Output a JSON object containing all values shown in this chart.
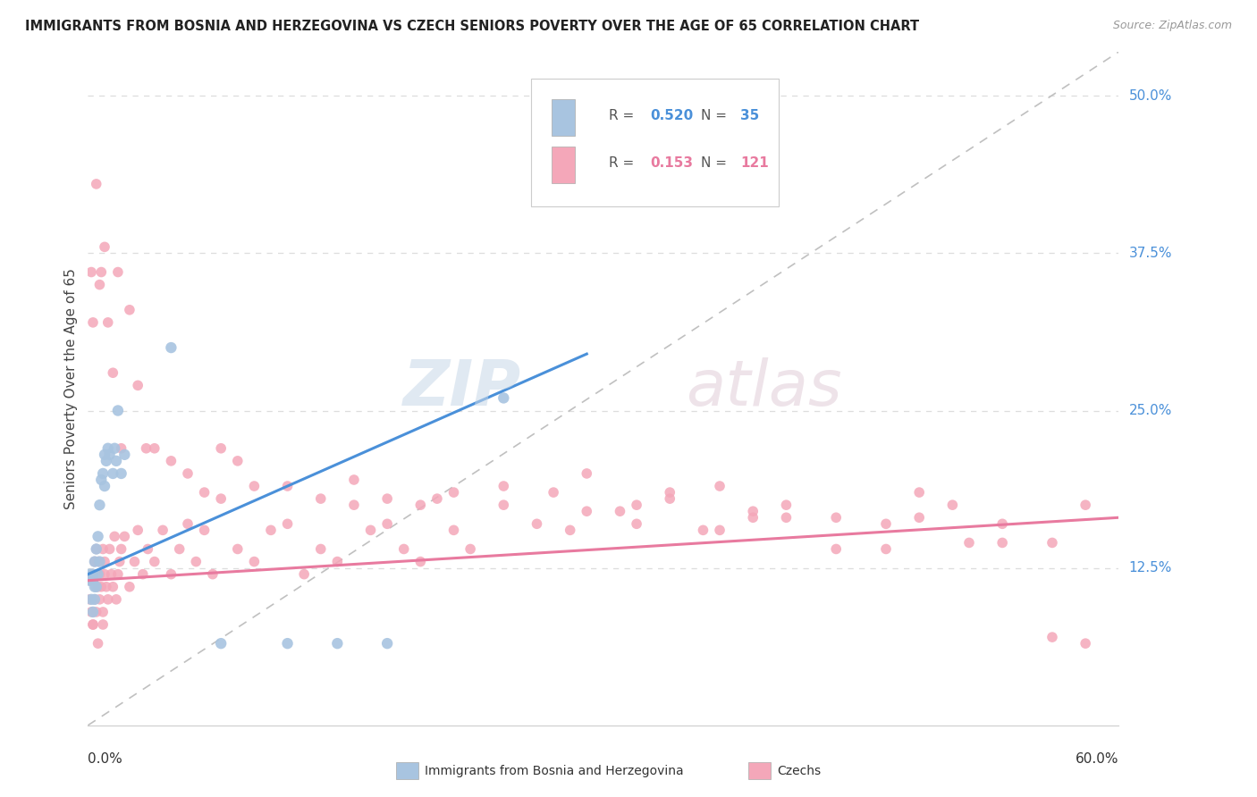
{
  "title": "IMMIGRANTS FROM BOSNIA AND HERZEGOVINA VS CZECH SENIORS POVERTY OVER THE AGE OF 65 CORRELATION CHART",
  "source": "Source: ZipAtlas.com",
  "ylabel": "Seniors Poverty Over the Age of 65",
  "color_bosnia": "#a8c4e0",
  "color_czechs": "#f4a7b9",
  "line_color_bosnia": "#4a90d9",
  "line_color_czechs": "#e87a9f",
  "dashed_line_color": "#c0c0c0",
  "grid_color": "#dddddd",
  "xlim": [
    0.0,
    0.62
  ],
  "ylim": [
    0.0,
    0.535
  ],
  "ytick_values": [
    0.125,
    0.25,
    0.375,
    0.5
  ],
  "ytick_labels": [
    "12.5%",
    "25.0%",
    "37.5%",
    "50.0%"
  ],
  "bosnia_x": [
    0.001,
    0.001,
    0.002,
    0.002,
    0.003,
    0.003,
    0.003,
    0.004,
    0.004,
    0.004,
    0.005,
    0.005,
    0.006,
    0.006,
    0.007,
    0.007,
    0.008,
    0.009,
    0.01,
    0.01,
    0.011,
    0.012,
    0.013,
    0.015,
    0.016,
    0.017,
    0.018,
    0.02,
    0.022,
    0.05,
    0.08,
    0.12,
    0.15,
    0.18,
    0.25
  ],
  "bosnia_y": [
    0.115,
    0.12,
    0.115,
    0.1,
    0.09,
    0.12,
    0.115,
    0.1,
    0.11,
    0.13,
    0.11,
    0.14,
    0.12,
    0.15,
    0.13,
    0.175,
    0.195,
    0.2,
    0.19,
    0.215,
    0.21,
    0.22,
    0.215,
    0.2,
    0.22,
    0.21,
    0.25,
    0.2,
    0.215,
    0.3,
    0.065,
    0.065,
    0.065,
    0.065,
    0.26
  ],
  "czechs_x": [
    0.001,
    0.001,
    0.002,
    0.002,
    0.003,
    0.003,
    0.004,
    0.004,
    0.005,
    0.005,
    0.006,
    0.006,
    0.007,
    0.007,
    0.008,
    0.009,
    0.009,
    0.01,
    0.01,
    0.011,
    0.012,
    0.013,
    0.014,
    0.015,
    0.016,
    0.017,
    0.018,
    0.019,
    0.02,
    0.022,
    0.025,
    0.028,
    0.03,
    0.033,
    0.036,
    0.04,
    0.045,
    0.05,
    0.055,
    0.06,
    0.065,
    0.07,
    0.075,
    0.08,
    0.09,
    0.1,
    0.11,
    0.12,
    0.13,
    0.14,
    0.15,
    0.16,
    0.17,
    0.18,
    0.19,
    0.2,
    0.21,
    0.22,
    0.23,
    0.25,
    0.27,
    0.29,
    0.3,
    0.32,
    0.33,
    0.35,
    0.37,
    0.38,
    0.4,
    0.42,
    0.45,
    0.48,
    0.5,
    0.52,
    0.55,
    0.58,
    0.6,
    0.002,
    0.003,
    0.005,
    0.007,
    0.008,
    0.01,
    0.012,
    0.015,
    0.018,
    0.02,
    0.025,
    0.03,
    0.035,
    0.04,
    0.05,
    0.06,
    0.07,
    0.08,
    0.09,
    0.1,
    0.12,
    0.14,
    0.16,
    0.18,
    0.2,
    0.22,
    0.25,
    0.28,
    0.3,
    0.33,
    0.35,
    0.38,
    0.4,
    0.42,
    0.45,
    0.48,
    0.5,
    0.53,
    0.55,
    0.58,
    0.6,
    0.003,
    0.006,
    0.009
  ],
  "czechs_y": [
    0.1,
    0.115,
    0.09,
    0.115,
    0.08,
    0.12,
    0.1,
    0.13,
    0.09,
    0.14,
    0.11,
    0.13,
    0.1,
    0.12,
    0.11,
    0.09,
    0.14,
    0.12,
    0.13,
    0.11,
    0.1,
    0.14,
    0.12,
    0.11,
    0.15,
    0.1,
    0.12,
    0.13,
    0.14,
    0.15,
    0.11,
    0.13,
    0.155,
    0.12,
    0.14,
    0.13,
    0.155,
    0.12,
    0.14,
    0.16,
    0.13,
    0.155,
    0.12,
    0.18,
    0.14,
    0.13,
    0.155,
    0.16,
    0.12,
    0.14,
    0.13,
    0.175,
    0.155,
    0.16,
    0.14,
    0.13,
    0.18,
    0.155,
    0.14,
    0.19,
    0.16,
    0.155,
    0.2,
    0.17,
    0.16,
    0.18,
    0.155,
    0.19,
    0.17,
    0.175,
    0.14,
    0.16,
    0.165,
    0.175,
    0.16,
    0.145,
    0.175,
    0.36,
    0.32,
    0.43,
    0.35,
    0.36,
    0.38,
    0.32,
    0.28,
    0.36,
    0.22,
    0.33,
    0.27,
    0.22,
    0.22,
    0.21,
    0.2,
    0.185,
    0.22,
    0.21,
    0.19,
    0.19,
    0.18,
    0.195,
    0.18,
    0.175,
    0.185,
    0.175,
    0.185,
    0.17,
    0.175,
    0.185,
    0.155,
    0.165,
    0.165,
    0.165,
    0.14,
    0.185,
    0.145,
    0.145,
    0.07,
    0.065,
    0.08,
    0.065,
    0.08
  ]
}
